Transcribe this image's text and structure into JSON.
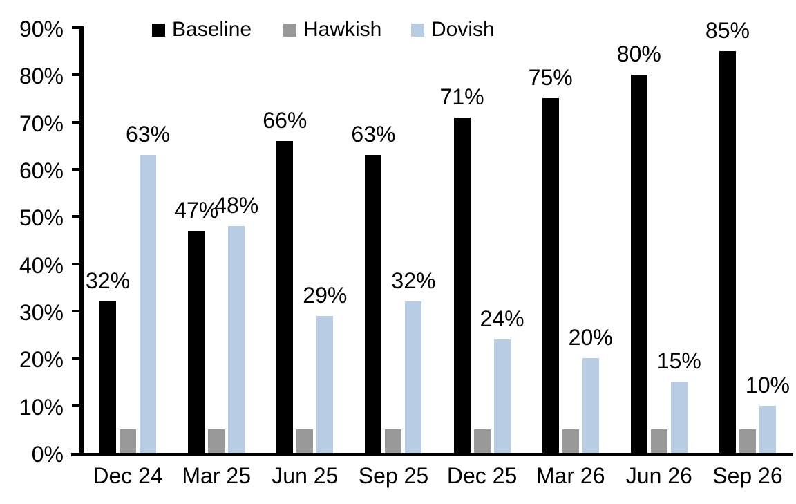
{
  "chart_data": {
    "type": "bar",
    "title": "",
    "categories": [
      "Dec 24",
      "Mar 25",
      "Jun 25",
      "Sep 25",
      "Dec 25",
      "Mar 26",
      "Jun 26",
      "Sep 26"
    ],
    "series": [
      {
        "name": "Baseline",
        "color": "#000000",
        "values": [
          32,
          47,
          66,
          63,
          71,
          75,
          80,
          85
        ],
        "show_labels": true
      },
      {
        "name": "Hawkish",
        "color": "#999999",
        "values": [
          5,
          5,
          5,
          5,
          5,
          5,
          5,
          5
        ],
        "show_labels": false
      },
      {
        "name": "Dovish",
        "color": "#b8cce4",
        "values": [
          63,
          48,
          29,
          32,
          24,
          20,
          15,
          10
        ],
        "show_labels": true
      }
    ],
    "label_format": "{v}%",
    "y_ticks": [
      "0%",
      "10%",
      "20%",
      "30%",
      "40%",
      "50%",
      "60%",
      "70%",
      "80%",
      "90%"
    ],
    "ylim": [
      0,
      90
    ],
    "y_tick_step": 10,
    "grid": "off",
    "legend_position": "top",
    "axis_color": "#000000",
    "background_color": "#ffffff"
  }
}
